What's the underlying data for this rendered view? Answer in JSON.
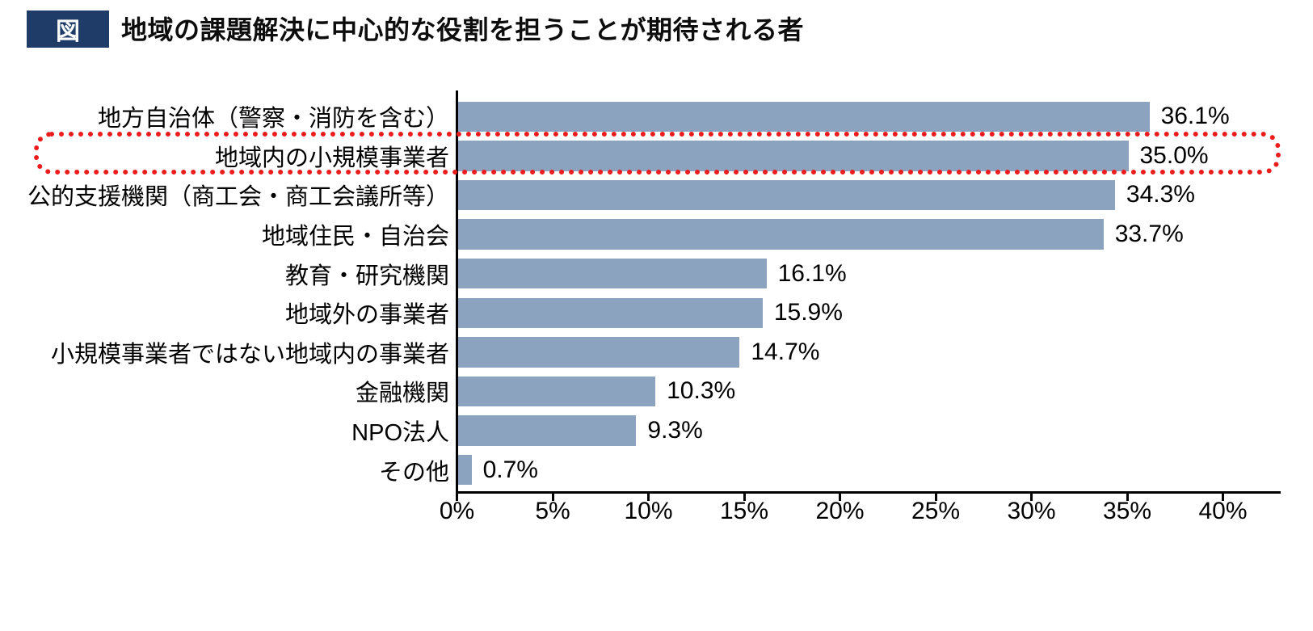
{
  "header": {
    "badge": "図",
    "title": "地域の課題解決に中心的な役割を担うことが期待される者"
  },
  "colors": {
    "bar": "#8ba3bf",
    "badge_bg": "#1f3c68",
    "highlight": "#ed1c1c",
    "axis": "#000000"
  },
  "chart_data": {
    "type": "bar",
    "orientation": "horizontal",
    "title": "地域の課題解決に中心的な役割を担うことが期待される者",
    "categories": [
      "地方自治体（警察・消防を含む）",
      "地域内の小規模事業者",
      "公的支援機関（商工会・商工会議所等）",
      "地域住民・自治会",
      "教育・研究機関",
      "地域外の事業者",
      "小規模事業者ではない地域内の事業者",
      "金融機関",
      "NPO法人",
      "その他"
    ],
    "values": [
      36.1,
      35.0,
      34.3,
      33.7,
      16.1,
      15.9,
      14.7,
      10.3,
      9.3,
      0.7
    ],
    "value_labels": [
      "36.1%",
      "35.0%",
      "34.3%",
      "33.7%",
      "16.1%",
      "15.9%",
      "14.7%",
      "10.3%",
      "9.3%",
      "0.7%"
    ],
    "xlabel": "",
    "ylabel": "",
    "xlim": [
      0,
      43
    ],
    "x_ticks": [
      "0%",
      "5%",
      "10%",
      "15%",
      "20%",
      "25%",
      "30%",
      "35%",
      "40%"
    ],
    "x_tick_values": [
      0,
      5,
      10,
      15,
      20,
      25,
      30,
      35,
      40
    ],
    "grid": false,
    "legend": "none",
    "highlight_index": 1,
    "highlighted_category": "地域内の小規模事業者",
    "highlight_style": "red-dotted-rounded-outline"
  }
}
